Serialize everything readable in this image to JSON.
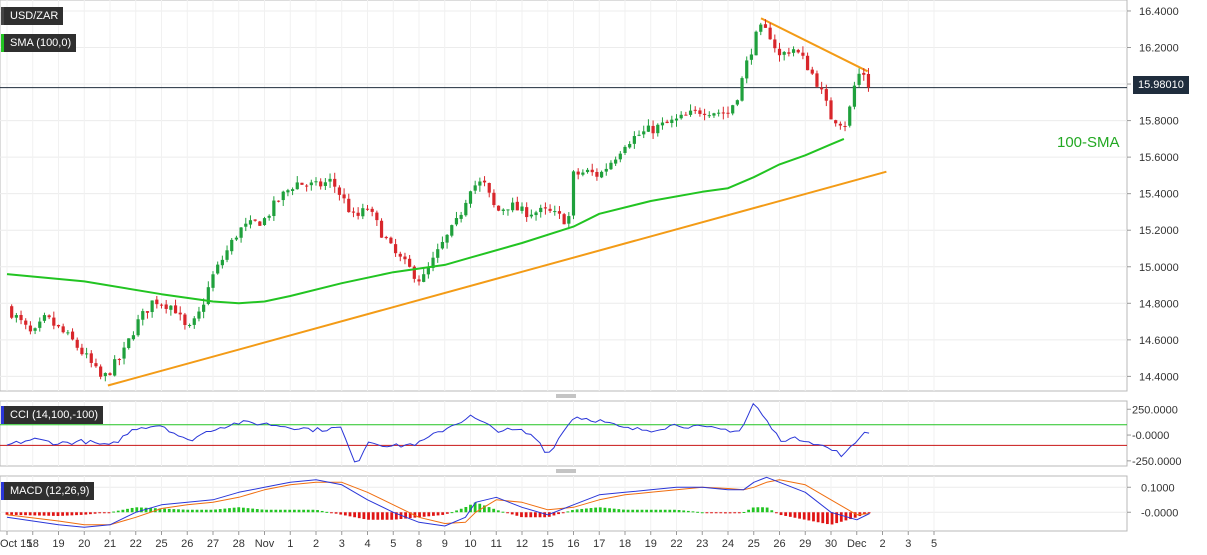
{
  "chart_data": [
    {
      "type": "candlestick",
      "title": "USD/ZAR",
      "indicator_label": "SMA (100,0)",
      "annotation": "100-SMA",
      "last_price": "15.98010",
      "y_ticks": [
        "16.4000",
        "16.2000",
        "16.0000",
        "15.8000",
        "15.6000",
        "15.4000",
        "15.2000",
        "15.0000",
        "14.8000",
        "14.6000",
        "14.4000"
      ],
      "ylim": [
        14.32,
        16.46
      ],
      "x_ticks": [
        "Oct 15",
        "18",
        "19",
        "20",
        "21",
        "22",
        "25",
        "26",
        "27",
        "28",
        "Nov",
        "1",
        "2",
        "3",
        "4",
        "5",
        "8",
        "9",
        "10",
        "11",
        "12",
        "15",
        "16",
        "17",
        "18",
        "19",
        "22",
        "23",
        "24",
        "25",
        "26",
        "29",
        "30",
        "Dec",
        "2",
        "3",
        "5"
      ],
      "series": [
        {
          "name": "100-SMA",
          "color": "#22c422",
          "x": [
            0,
            3,
            6,
            8,
            9,
            10,
            11,
            13,
            15,
            17,
            18,
            20,
            22,
            23,
            25,
            27,
            28,
            29,
            30,
            31,
            32,
            32.5
          ],
          "y": [
            14.96,
            14.92,
            14.85,
            14.81,
            14.8,
            14.81,
            14.84,
            14.91,
            14.97,
            15.01,
            15.05,
            15.13,
            15.22,
            15.29,
            15.36,
            15.41,
            15.43,
            15.49,
            15.56,
            15.61,
            15.67,
            15.7
          ]
        },
        {
          "name": "Support trendline",
          "color": "#f39b16",
          "x": [
            3.92,
            34.15
          ],
          "y": [
            14.35,
            15.52
          ]
        },
        {
          "name": "Resistance trendline",
          "color": "#f39b16",
          "x": [
            29.28,
            33.42
          ],
          "y": [
            16.36,
            16.07
          ]
        }
      ],
      "anchors": [
        {
          "x": 0,
          "y": 14.78
        },
        {
          "x": 1,
          "y": 14.62
        },
        {
          "x": 1.5,
          "y": 14.72
        },
        {
          "x": 2.5,
          "y": 14.6
        },
        {
          "x": 3.1,
          "y": 14.5
        },
        {
          "x": 3.7,
          "y": 14.38
        },
        {
          "x": 4.5,
          "y": 14.52
        },
        {
          "x": 5,
          "y": 14.68
        },
        {
          "x": 5.7,
          "y": 14.82
        },
        {
          "x": 6.5,
          "y": 14.78
        },
        {
          "x": 7,
          "y": 14.64
        },
        {
          "x": 7.4,
          "y": 14.72
        },
        {
          "x": 8,
          "y": 14.95
        },
        {
          "x": 9,
          "y": 15.2
        },
        {
          "x": 10,
          "y": 15.26
        },
        {
          "x": 10.5,
          "y": 15.36
        },
        {
          "x": 11.2,
          "y": 15.46
        },
        {
          "x": 12,
          "y": 15.44
        },
        {
          "x": 12.6,
          "y": 15.47
        },
        {
          "x": 13.1,
          "y": 15.36
        },
        {
          "x": 13.5,
          "y": 15.26
        },
        {
          "x": 14,
          "y": 15.32
        },
        {
          "x": 14.5,
          "y": 15.2
        },
        {
          "x": 15,
          "y": 15.08
        },
        {
          "x": 16.1,
          "y": 14.92
        },
        {
          "x": 16.9,
          "y": 15.12
        },
        {
          "x": 17.5,
          "y": 15.25
        },
        {
          "x": 18,
          "y": 15.44
        },
        {
          "x": 18.5,
          "y": 15.46
        },
        {
          "x": 19,
          "y": 15.3
        },
        {
          "x": 19.5,
          "y": 15.34
        },
        {
          "x": 20,
          "y": 15.3
        },
        {
          "x": 21,
          "y": 15.3
        },
        {
          "x": 21.8,
          "y": 15.25
        },
        {
          "x": 22,
          "y": 15.5
        },
        {
          "x": 22.5,
          "y": 15.52
        },
        {
          "x": 23,
          "y": 15.5
        },
        {
          "x": 23.6,
          "y": 15.6
        },
        {
          "x": 24,
          "y": 15.68
        },
        {
          "x": 24.5,
          "y": 15.72
        },
        {
          "x": 25,
          "y": 15.75
        },
        {
          "x": 26,
          "y": 15.8
        },
        {
          "x": 27,
          "y": 15.86
        },
        {
          "x": 28,
          "y": 15.84
        },
        {
          "x": 28.4,
          "y": 15.95
        },
        {
          "x": 28.8,
          "y": 16.15
        },
        {
          "x": 29.2,
          "y": 16.3
        },
        {
          "x": 29.6,
          "y": 16.28
        },
        {
          "x": 30,
          "y": 16.15
        },
        {
          "x": 30.5,
          "y": 16.2
        },
        {
          "x": 31,
          "y": 16.12
        },
        {
          "x": 31.5,
          "y": 16.0
        },
        {
          "x": 32,
          "y": 15.82
        },
        {
          "x": 32.6,
          "y": 15.78
        },
        {
          "x": 33,
          "y": 16.05
        },
        {
          "x": 33.3,
          "y": 16.06
        },
        {
          "x": 33.5,
          "y": 15.98
        }
      ]
    },
    {
      "type": "line",
      "title": "CCI (14,100,-100)",
      "y_ticks": [
        "250.0000",
        "-0.0000",
        "-250.0000"
      ],
      "ylim": [
        -300,
        330
      ],
      "levels": [
        {
          "value": 100,
          "color": "#22c422"
        },
        {
          "value": -100,
          "color": "#c81414"
        }
      ],
      "series": [
        {
          "name": "CCI",
          "color": "#2a36d8",
          "x": [
            0,
            1,
            2,
            3,
            4,
            5,
            6,
            7,
            8,
            9,
            10,
            11,
            12,
            13,
            13.3,
            13.6,
            14,
            15,
            16,
            17,
            18,
            19,
            20,
            20.6,
            21,
            22,
            23,
            24,
            25,
            26,
            27,
            28,
            28.5,
            29,
            30,
            31,
            32,
            32.5,
            33,
            33.3,
            33.5
          ],
          "y": [
            -100,
            -40,
            -80,
            -60,
            -110,
            70,
            100,
            -60,
            60,
            120,
            110,
            80,
            50,
            70,
            -160,
            -280,
            -60,
            -110,
            -80,
            60,
            180,
            50,
            40,
            -40,
            -190,
            180,
            140,
            60,
            50,
            100,
            70,
            50,
            40,
            310,
            -40,
            -40,
            -140,
            -200,
            -60,
            40,
            10
          ]
        }
      ]
    },
    {
      "type": "macd",
      "title": "MACD (12,26,9)",
      "y_ticks": [
        "0.1000",
        "-0.0000"
      ],
      "ylim": [
        -0.075,
        0.145
      ],
      "series": [
        {
          "name": "MACD",
          "color": "#2a36d8",
          "x": [
            0,
            2,
            3,
            4,
            5,
            6,
            7,
            8,
            9,
            10,
            11,
            12,
            13,
            14,
            15,
            16,
            17,
            17.8,
            18.2,
            19,
            20,
            21,
            22,
            23,
            24,
            25,
            26,
            27,
            28,
            28.6,
            29,
            29.5,
            30,
            31,
            32,
            33,
            33.5
          ],
          "y": [
            -0.02,
            -0.05,
            -0.06,
            -0.05,
            0.0,
            0.03,
            0.04,
            0.05,
            0.08,
            0.1,
            0.12,
            0.13,
            0.11,
            0.05,
            0.0,
            -0.04,
            -0.055,
            -0.02,
            0.04,
            0.06,
            0.02,
            -0.01,
            0.03,
            0.07,
            0.08,
            0.09,
            0.1,
            0.1,
            0.09,
            0.09,
            0.12,
            0.14,
            0.12,
            0.08,
            0.0,
            -0.03,
            -0.005
          ]
        },
        {
          "name": "Signal",
          "color": "#f06e10",
          "x": [
            0,
            2,
            3,
            4,
            5,
            6,
            7,
            8,
            9,
            10,
            11,
            12,
            13,
            14,
            15,
            16,
            17,
            17.8,
            18.2,
            19,
            20,
            21,
            22,
            23,
            24,
            25,
            26,
            27,
            28,
            28.6,
            29,
            29.5,
            30,
            31,
            32,
            33,
            33.5
          ],
          "y": [
            -0.01,
            -0.035,
            -0.05,
            -0.05,
            -0.02,
            0.015,
            0.03,
            0.04,
            0.06,
            0.09,
            0.11,
            0.12,
            0.12,
            0.08,
            0.03,
            -0.02,
            -0.045,
            -0.04,
            0.0,
            0.05,
            0.04,
            0.01,
            0.02,
            0.05,
            0.07,
            0.08,
            0.09,
            0.1,
            0.095,
            0.09,
            0.1,
            0.12,
            0.13,
            0.11,
            0.05,
            -0.01,
            -0.005
          ]
        }
      ]
    }
  ]
}
